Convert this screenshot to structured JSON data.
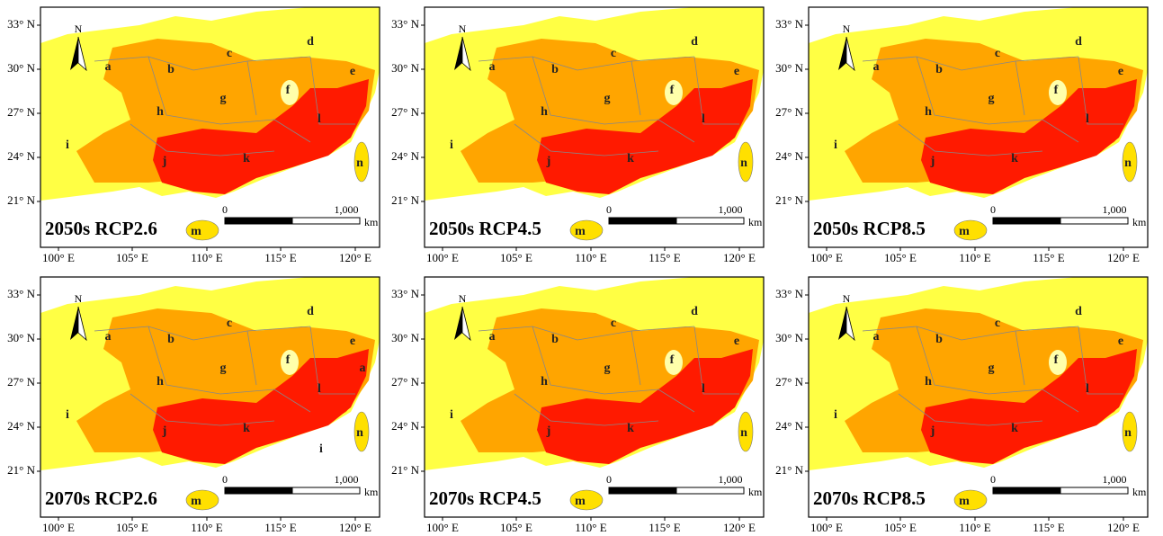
{
  "north": "N",
  "scale": {
    "start": "0",
    "end": "1,000",
    "unit": "km"
  },
  "lat_ticks": [
    "33° N",
    "30° N",
    "27° N",
    "24° N",
    "21° N"
  ],
  "lon_ticks": [
    "100° E",
    "105° E",
    "110° E",
    "115° E",
    "120° E"
  ],
  "panels": [
    {
      "label": "2050s RCP2.6",
      "region_labels": [
        "a",
        "b",
        "c",
        "d",
        "e",
        "f",
        "g",
        "h",
        "i",
        "j",
        "k",
        "l",
        "m",
        "n"
      ]
    },
    {
      "label": "2050s RCP4.5",
      "region_labels": [
        "a",
        "b",
        "c",
        "d",
        "e",
        "f",
        "g",
        "h",
        "i",
        "j",
        "k",
        "l",
        "m",
        "n"
      ]
    },
    {
      "label": "2050s RCP8.5",
      "region_labels": [
        "a",
        "b",
        "c",
        "d",
        "e",
        "f",
        "g",
        "h",
        "i",
        "j",
        "k",
        "l",
        "m",
        "n"
      ]
    },
    {
      "label": "2070s RCP2.6",
      "region_labels": [
        "a",
        "b",
        "c",
        "d",
        "e",
        "f",
        "g",
        "h",
        "i",
        "j",
        "k",
        "l",
        "m",
        "n",
        "a",
        "i"
      ]
    },
    {
      "label": "2070s RCP4.5",
      "region_labels": [
        "a",
        "b",
        "c",
        "d",
        "e",
        "f",
        "g",
        "h",
        "i",
        "j",
        "k",
        "l",
        "m",
        "n"
      ]
    },
    {
      "label": "2070s RCP8.5",
      "region_labels": [
        "a",
        "b",
        "c",
        "d",
        "e",
        "f",
        "g",
        "h",
        "i",
        "j",
        "k",
        "l",
        "m",
        "n"
      ]
    }
  ]
}
